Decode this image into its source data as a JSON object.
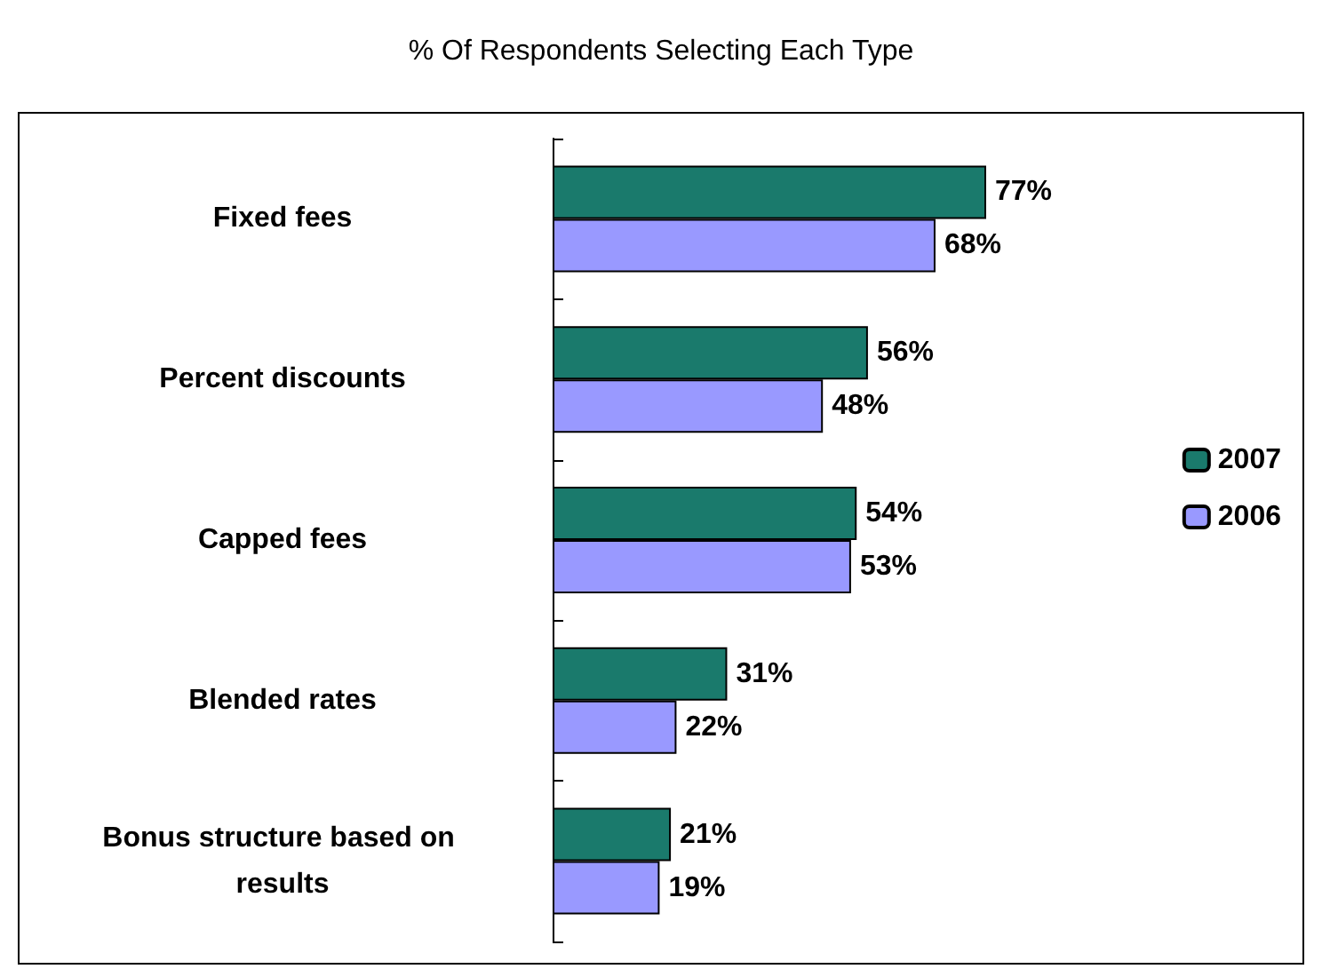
{
  "chart_data": {
    "type": "bar",
    "orientation": "horizontal",
    "title": "% Of Respondents Selecting Each Type",
    "categories": [
      "Fixed fees",
      "Percent discounts",
      "Capped fees",
      "Blended rates",
      "Bonus structure based on results"
    ],
    "series": [
      {
        "name": "2007",
        "color": "#1a7a6c",
        "values": [
          77,
          56,
          54,
          31,
          21
        ],
        "value_labels": [
          "77%",
          "56%",
          "54%",
          "31%",
          "21%"
        ]
      },
      {
        "name": "2006",
        "color": "#9999ff",
        "values": [
          68,
          48,
          53,
          22,
          19
        ],
        "value_labels": [
          "68%",
          "48%",
          "53%",
          "22%",
          "19%"
        ]
      }
    ],
    "legend": "right"
  }
}
